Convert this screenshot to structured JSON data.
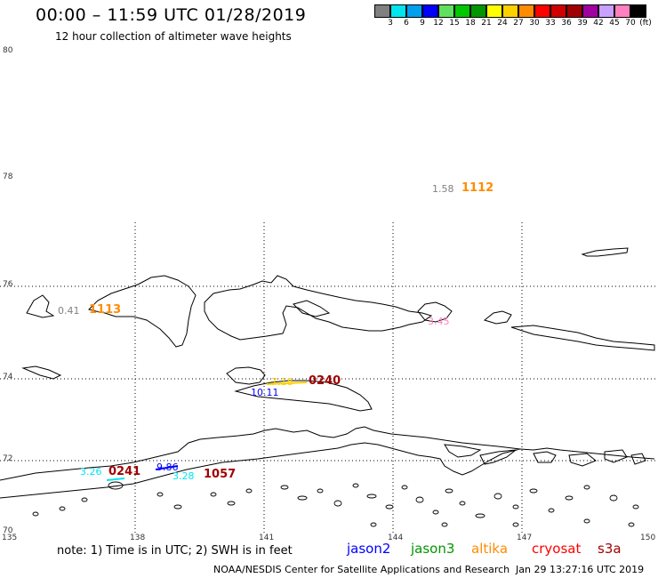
{
  "header": {
    "title": "00:00 – 11:59 UTC 01/28/2019",
    "subtitle": "12 hour collection of altimeter wave heights"
  },
  "color_scale": {
    "unit": "(ft)",
    "swatches": [
      {
        "label": "3",
        "color": "#808080"
      },
      {
        "label": "6",
        "color": "#00e5ee"
      },
      {
        "label": "9",
        "color": "#00a0ee"
      },
      {
        "label": "12",
        "color": "#0000ff"
      },
      {
        "label": "15",
        "color": "#60e060"
      },
      {
        "label": "18",
        "color": "#00c800"
      },
      {
        "label": "21",
        "color": "#009600"
      },
      {
        "label": "24",
        "color": "#ffff00"
      },
      {
        "label": "27",
        "color": "#ffd000"
      },
      {
        "label": "30",
        "color": "#ff8c00"
      },
      {
        "label": "33",
        "color": "#ff0000"
      },
      {
        "label": "36",
        "color": "#d00000"
      },
      {
        "label": "39",
        "color": "#a00000"
      },
      {
        "label": "42",
        "color": "#a000a0"
      },
      {
        "label": "45",
        "color": "#c8a0ff"
      },
      {
        "label": "70",
        "color": "#ff80c0"
      },
      {
        "label": "",
        "color": "#000000"
      }
    ]
  },
  "map": {
    "lat_labels": [
      "80",
      "78",
      "76",
      "74",
      "72",
      "70"
    ],
    "lon_labels": [
      "135",
      "138",
      "141",
      "144",
      "147",
      "150"
    ],
    "observations": [
      {
        "value": "1.58",
        "color": "#808080"
      },
      {
        "value": "0.41",
        "color": "#808080"
      },
      {
        "value": "3.45",
        "color": "#ff80c0"
      },
      {
        "value": "7.18",
        "color": "#ffd000"
      },
      {
        "value": "10.11",
        "color": "#0000ff"
      },
      {
        "value": "3.26",
        "color": "#00e5ee"
      },
      {
        "value": "9.86",
        "color": "#0000ff"
      },
      {
        "value": "3.28",
        "color": "#00e5ee"
      }
    ],
    "pass_times": [
      {
        "value": "1112",
        "color": "#ff8c00"
      },
      {
        "value": "1113",
        "color": "#ff8c00"
      },
      {
        "value": "0240",
        "color": "#a00000"
      },
      {
        "value": "0241",
        "color": "#a00000"
      },
      {
        "value": "1057",
        "color": "#a00000"
      }
    ]
  },
  "footer": {
    "note": "note: 1) Time is in UTC; 2) SWH is in feet",
    "satellites": [
      {
        "name": "jason2",
        "color": "#0000ff"
      },
      {
        "name": "jason3",
        "color": "#009600"
      },
      {
        "name": "altika",
        "color": "#ff8c00"
      },
      {
        "name": "cryosat",
        "color": "#ff0000"
      },
      {
        "name": "s3a",
        "color": "#a00000"
      }
    ],
    "credit": "NOAA/NESDIS Center for Satellite Applications and Research",
    "generated": "Jan 29 13:27:16 UTC 2019"
  }
}
